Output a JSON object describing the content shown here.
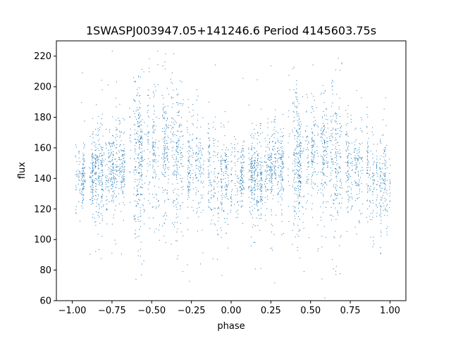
{
  "chart_data": {
    "type": "scatter",
    "title": "1SWASPJ003947.05+141246.6 Period 4145603.75s",
    "xlabel": "phase",
    "ylabel": "flux",
    "xlim": [
      -1.1,
      1.1
    ],
    "ylim": [
      60,
      230
    ],
    "xticks": [
      -1.0,
      -0.75,
      -0.5,
      -0.25,
      0.0,
      0.25,
      0.5,
      0.75,
      1.0
    ],
    "xtick_labels": [
      "−1.00",
      "−0.75",
      "−0.50",
      "−0.25",
      "0.00",
      "0.25",
      "0.50",
      "0.75",
      "1.00"
    ],
    "yticks": [
      60,
      80,
      100,
      120,
      140,
      160,
      180,
      200,
      220
    ],
    "ytick_labels": [
      "60",
      "80",
      "100",
      "120",
      "140",
      "160",
      "180",
      "200",
      "220"
    ],
    "grid": false,
    "marker_color": "#1f77b4",
    "series": [
      {
        "description": "Dense vertical streaks of individual flux samples folded on phase, mirrored at phase +1",
        "profile": {
          "phase": [
            -1.0,
            -0.9,
            -0.8,
            -0.7,
            -0.6,
            -0.5,
            -0.4,
            -0.3,
            -0.2,
            -0.1,
            0.0,
            0.1,
            0.2,
            0.3,
            0.4,
            0.5,
            0.6,
            0.7,
            0.8,
            0.9,
            1.0
          ],
          "median_flux": [
            138,
            140,
            145,
            148,
            150,
            155,
            152,
            150,
            145,
            142,
            138,
            140,
            145,
            148,
            150,
            155,
            152,
            150,
            145,
            142,
            138
          ],
          "typical_spread": [
            14,
            12,
            14,
            16,
            20,
            24,
            22,
            20,
            16,
            14,
            14,
            12,
            14,
            16,
            20,
            24,
            22,
            20,
            16,
            14,
            14
          ]
        }
      }
    ]
  }
}
